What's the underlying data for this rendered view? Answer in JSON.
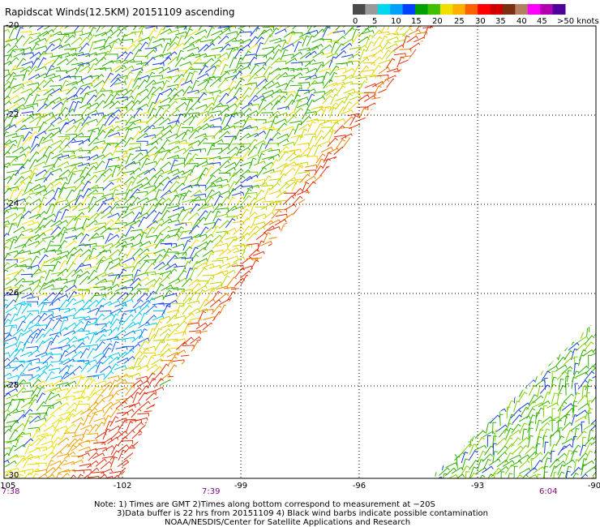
{
  "title": "Rapidscat Winds(12.5KM) 20151109 ascending",
  "legend": {
    "labels": [
      "0",
      "5",
      "10",
      "15",
      "20",
      "25",
      "30",
      "35",
      "40",
      "45",
      ">50 knots"
    ],
    "colors": [
      "#4a4a4a",
      "#9a9a9a",
      "#00d8f0",
      "#00a0ff",
      "#0040ff",
      "#00a000",
      "#40c000",
      "#f0e000",
      "#ffb000",
      "#ff6000",
      "#ff0000",
      "#d00000",
      "#7a3010",
      "#b08060",
      "#ff00ff",
      "#b000b0",
      "#50009a"
    ]
  },
  "map": {
    "lat_ticks": [
      "-20",
      "-22",
      "-24",
      "-26",
      "-28",
      "-30"
    ],
    "lon_ticks": [
      "-105",
      "-102",
      "-99",
      "-96",
      "-93",
      "-90"
    ],
    "time_labels": [
      "7:38",
      "7:39",
      "6:04"
    ]
  },
  "notes": {
    "line1": "Note: 1) Times are GMT 2)Times along bottom correspond to measurement at −20S",
    "line2": "3)Data buffer is 22 hrs from 20151109 4) Black wind barbs indicate possible contamination",
    "line3": "NOAA/NESDIS/Center for Satellite Applications and Research"
  }
}
